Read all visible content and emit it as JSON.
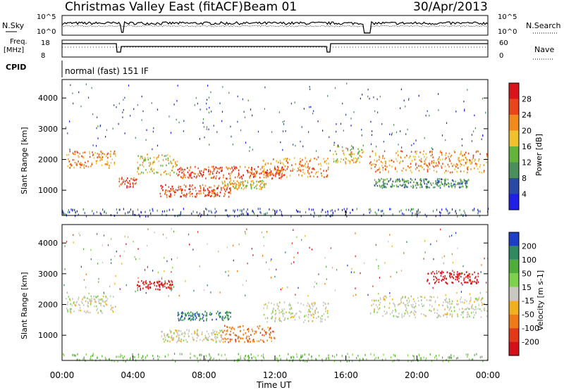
{
  "header": {
    "station": "Christmas Valley East (fitACF)",
    "beam": "Beam 01",
    "date": "30/Apr/2013"
  },
  "noise_panel": {
    "left_label": "N.Sky",
    "right_label": "N.Search",
    "left_ticks": [
      "10^5",
      "10^0"
    ],
    "right_ticks": [
      "10^5",
      "10^0"
    ]
  },
  "freq_panel": {
    "left_label_1": "Freq.",
    "left_label_2": "[MHz]",
    "left_ticks": [
      "18",
      "8"
    ],
    "right_label": "Nave",
    "right_ticks": [
      "60",
      "0"
    ]
  },
  "cpid": {
    "label": "CPID",
    "value": "normal (fast) 151 IF"
  },
  "x_axis": {
    "label": "Time UT",
    "ticks": [
      "00:00",
      "04:00",
      "08:00",
      "12:00",
      "16:00",
      "20:00",
      "00:00"
    ]
  },
  "power_panel": {
    "ylabel": "Slant Range [km]",
    "yticks": [
      "1000",
      "2000",
      "3000",
      "4000"
    ],
    "colorbar_label": "Power [dB]",
    "colorbar_ticks": [
      "4",
      "8",
      "12",
      "16",
      "20",
      "24",
      "28"
    ],
    "colors": [
      "#1f1fe6",
      "#2a4aa8",
      "#4b8f5a",
      "#64b43c",
      "#f2c12e",
      "#f08a1c",
      "#e8451a",
      "#d9141a"
    ]
  },
  "velocity_panel": {
    "ylabel": "Slant Range [km]",
    "yticks": [
      "1000",
      "2000",
      "3000",
      "4000"
    ],
    "colorbar_label": "Velocity [m s-1]",
    "colorbar_ticks": [
      "200",
      "100",
      "50",
      "15",
      "-15",
      "-50",
      "-100",
      "-200"
    ],
    "colors": [
      "#1d3fc8",
      "#2f8a62",
      "#4fae3a",
      "#7ed14a",
      "#c8c8c0",
      "#f0b020",
      "#f07a18",
      "#e23a18",
      "#d4101a"
    ]
  },
  "chart_data": {
    "type": "heatmap",
    "x_range_hours": [
      0,
      24
    ],
    "y_range_km": [
      180,
      4600
    ],
    "power_bands": [
      {
        "t0": 0.2,
        "t1": 3.0,
        "r0": 1750,
        "r1": 2300,
        "db": 24
      },
      {
        "t0": 3.2,
        "t1": 4.2,
        "r0": 1100,
        "r1": 1450,
        "db": 26
      },
      {
        "t0": 4.2,
        "t1": 6.5,
        "r0": 1500,
        "r1": 2200,
        "db": 20
      },
      {
        "t0": 5.5,
        "t1": 9.5,
        "r0": 800,
        "r1": 1200,
        "db": 28
      },
      {
        "t0": 6.5,
        "t1": 12.5,
        "r0": 1400,
        "r1": 1800,
        "db": 26
      },
      {
        "t0": 9.0,
        "t1": 11.5,
        "r0": 1050,
        "r1": 1350,
        "db": 18
      },
      {
        "t0": 11.3,
        "t1": 15.0,
        "r0": 1450,
        "r1": 2100,
        "db": 22
      },
      {
        "t0": 15.2,
        "t1": 17.0,
        "r0": 1900,
        "r1": 2500,
        "db": 20
      },
      {
        "t0": 17.3,
        "t1": 24.0,
        "r0": 1600,
        "r1": 2300,
        "db": 24
      },
      {
        "t0": 17.5,
        "t1": 23.0,
        "r0": 1100,
        "r1": 1400,
        "db": 12
      }
    ],
    "velocity_bands": [
      {
        "t0": 0.2,
        "t1": 3.0,
        "r0": 1750,
        "r1": 2300,
        "v": 0
      },
      {
        "t0": 4.2,
        "t1": 6.2,
        "r0": 2500,
        "r1": 2800,
        "v": -200
      },
      {
        "t0": 6.5,
        "t1": 9.5,
        "r0": 1500,
        "r1": 1800,
        "v": 100
      },
      {
        "t0": 9.0,
        "t1": 12.0,
        "r0": 800,
        "r1": 1350,
        "v": -50
      },
      {
        "t0": 5.5,
        "t1": 9.0,
        "r0": 800,
        "r1": 1200,
        "v": 0
      },
      {
        "t0": 11.3,
        "t1": 15.0,
        "r0": 1450,
        "r1": 2100,
        "v": 0
      },
      {
        "t0": 17.3,
        "t1": 24.0,
        "r0": 1600,
        "r1": 2300,
        "v": 0
      },
      {
        "t0": 20.5,
        "t1": 23.5,
        "r0": 2700,
        "r1": 3100,
        "v": -200
      }
    ]
  }
}
